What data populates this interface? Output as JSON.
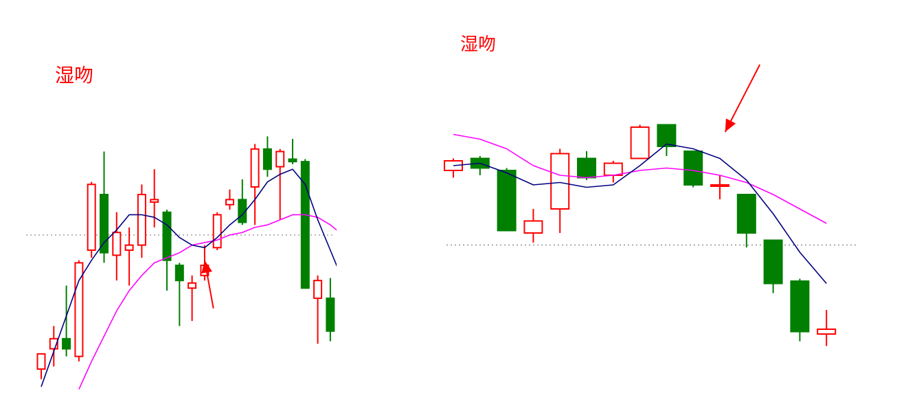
{
  "colors": {
    "up": "#ff0000",
    "down": "#007f00",
    "ma_fast": "#00007f",
    "ma_slow": "#ff00ff",
    "reference": "#808080",
    "arrow": "#ff0000",
    "title": "#ff0000"
  },
  "chart_data": [
    {
      "type": "candlestick",
      "title": "湿吻",
      "grid": false,
      "ylim": [
        0,
        100
      ],
      "reference_line": 56,
      "candles": [
        {
          "o": 3,
          "c": 9,
          "h": 9,
          "l": -1
        },
        {
          "o": 11,
          "c": 15,
          "h": 20,
          "l": 4
        },
        {
          "o": 15,
          "c": 11,
          "h": 36,
          "l": 8
        },
        {
          "o": 8,
          "c": 45,
          "h": 46,
          "l": 6
        },
        {
          "o": 50,
          "c": 76,
          "h": 77,
          "l": 47
        },
        {
          "o": 72,
          "c": 49,
          "h": 89,
          "l": 45
        },
        {
          "o": 48,
          "c": 57,
          "h": 65,
          "l": 38
        },
        {
          "o": 50,
          "c": 52,
          "h": 59,
          "l": 36
        },
        {
          "o": 52,
          "c": 72,
          "h": 76,
          "l": 47
        },
        {
          "o": 69,
          "c": 70,
          "h": 82,
          "l": 59
        },
        {
          "o": 65,
          "c": 46,
          "h": 66,
          "l": 34
        },
        {
          "o": 44,
          "c": 38,
          "h": 45,
          "l": 20
        },
        {
          "o": 35,
          "c": 37,
          "h": 40,
          "l": 22
        },
        {
          "o": 40,
          "c": 44,
          "h": 52,
          "l": 38
        },
        {
          "o": 51,
          "c": 64,
          "h": 65,
          "l": 50
        },
        {
          "o": 68,
          "c": 70,
          "h": 74,
          "l": 66
        },
        {
          "o": 70,
          "c": 61,
          "h": 78,
          "l": 60
        },
        {
          "o": 75,
          "c": 90,
          "h": 92,
          "l": 60
        },
        {
          "o": 90,
          "c": 82,
          "h": 95,
          "l": 79
        },
        {
          "o": 83,
          "c": 89,
          "h": 90,
          "l": 62
        },
        {
          "o": 86,
          "c": 85,
          "h": 94,
          "l": 84
        },
        {
          "o": 85,
          "c": 35,
          "h": 86,
          "l": 35
        },
        {
          "o": 31,
          "c": 38,
          "h": 40,
          "l": 13
        },
        {
          "o": 31,
          "c": 18,
          "h": 39,
          "l": 14
        },
        {
          "o": 16,
          "c": 12,
          "h": 17,
          "l": 9
        }
      ],
      "ma_fast": [
        -4,
        10,
        24,
        38,
        46,
        53,
        58,
        64,
        64,
        63,
        60,
        55,
        52,
        51,
        55,
        60,
        64,
        70,
        77,
        80,
        82,
        76,
        62,
        50,
        38
      ],
      "ma_slow": [
        null,
        null,
        null,
        -5,
        6,
        16,
        26,
        34,
        40,
        45,
        47,
        49,
        52,
        53,
        54,
        56,
        57,
        59,
        60,
        62,
        64,
        64,
        63,
        60,
        56
      ],
      "annotation": {
        "type": "arrow",
        "from_index": 13.7,
        "from_value": 27,
        "to_index": 13.0,
        "to_value": 46
      }
    },
    {
      "type": "candlestick",
      "title": "湿吻",
      "grid": false,
      "ylim": [
        0,
        100
      ],
      "reference_line": 51,
      "candles": [
        {
          "o": 82,
          "c": 86,
          "h": 87,
          "l": 79
        },
        {
          "o": 87,
          "c": 83,
          "h": 88,
          "l": 80
        },
        {
          "o": 82,
          "c": 57,
          "h": 83,
          "l": 57
        },
        {
          "o": 56,
          "c": 61,
          "h": 66,
          "l": 52
        },
        {
          "o": 66,
          "c": 89,
          "h": 91,
          "l": 56
        },
        {
          "o": 87,
          "c": 79,
          "h": 90,
          "l": 78
        },
        {
          "o": 80,
          "c": 85,
          "h": 86,
          "l": 77
        },
        {
          "o": 87,
          "c": 100,
          "h": 101,
          "l": 87
        },
        {
          "o": 101,
          "c": 92,
          "h": 101,
          "l": 88
        },
        {
          "o": 90,
          "c": 76,
          "h": 90,
          "l": 75
        },
        {
          "o": 76,
          "c": 76,
          "h": 80,
          "l": 70
        },
        {
          "o": 72,
          "c": 56,
          "h": 72,
          "l": 50
        },
        {
          "o": 53,
          "c": 35,
          "h": 53,
          "l": 31
        },
        {
          "o": 36,
          "c": 15,
          "h": 37,
          "l": 11
        },
        {
          "o": 14,
          "c": 16,
          "h": 24,
          "l": 9
        }
      ],
      "ma_fast": [
        84,
        85,
        81,
        76,
        77,
        75,
        76,
        84,
        93,
        91,
        87,
        78,
        64,
        48,
        35
      ],
      "ma_slow": [
        97,
        95,
        91,
        84,
        80,
        79,
        80,
        82,
        83,
        82,
        80,
        77,
        72,
        66,
        60
      ],
      "annotation": {
        "type": "arrow",
        "from_index": 11.5,
        "from_value": 126,
        "to_index": 10.2,
        "to_value": 98
      }
    }
  ]
}
